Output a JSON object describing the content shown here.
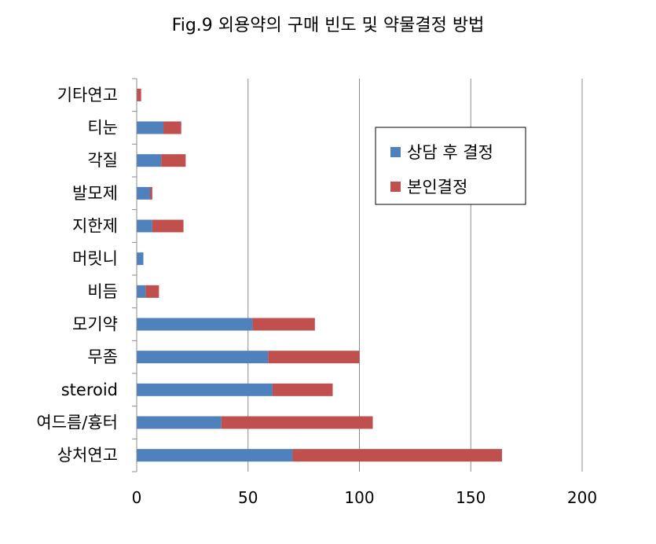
{
  "chart_data": {
    "type": "bar",
    "orientation": "horizontal",
    "stacked": true,
    "title": "Fig.9 외용약의 구매 빈도 및 약물결정 방법",
    "categories": [
      "상처연고",
      "여드름/흉터",
      "steroid",
      "무좀",
      "모기약",
      "비듬",
      "머릿니",
      "지한제",
      "발모제",
      "각질",
      "티눈",
      "기타연고"
    ],
    "series": [
      {
        "name": "상담 후 결정",
        "color": "#4f81bd",
        "values": [
          70,
          38,
          61,
          59,
          52,
          4,
          3,
          7,
          6,
          11,
          12,
          0
        ]
      },
      {
        "name": "본인결정",
        "color": "#c0504d",
        "values": [
          94,
          68,
          27,
          41,
          28,
          6,
          0,
          14,
          1,
          11,
          8,
          2
        ]
      }
    ],
    "xlim": [
      0,
      200
    ],
    "x_ticks": [
      0,
      50,
      100,
      150,
      200
    ],
    "grid": "vertical",
    "legend_position": "right-upper"
  }
}
